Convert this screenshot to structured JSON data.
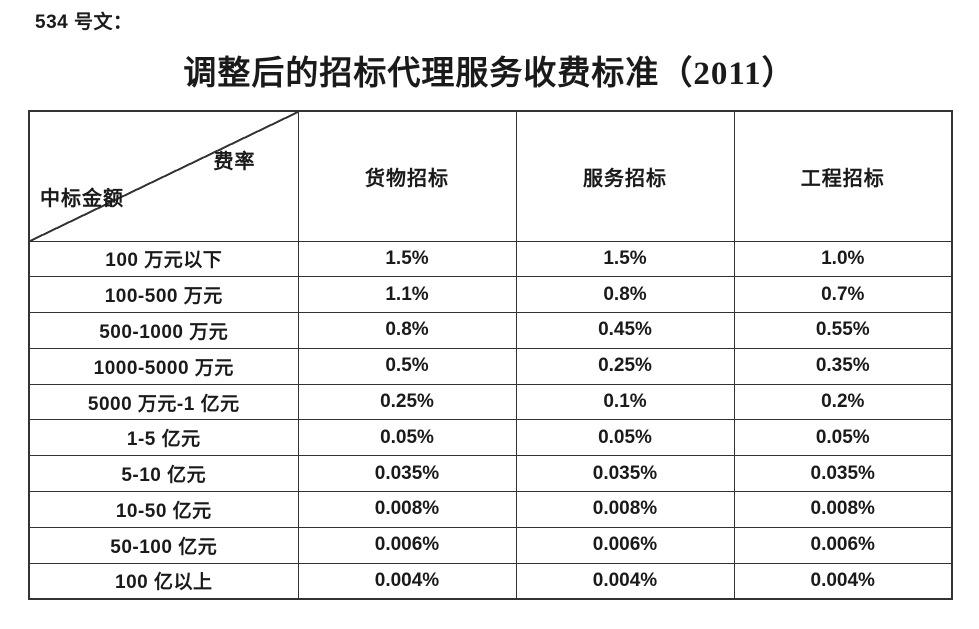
{
  "doc_number": "534 号文：",
  "title": "调整后的招标代理服务收费标准（2011）",
  "table": {
    "corner": {
      "rate_label": "费率",
      "amount_label": "中标金额"
    },
    "columns": [
      "货物招标",
      "服务招标",
      "工程招标"
    ],
    "rows": [
      {
        "label": "100 万元以下",
        "values": [
          "1.5%",
          "1.5%",
          "1.0%"
        ]
      },
      {
        "label": "100-500 万元",
        "values": [
          "1.1%",
          "0.8%",
          "0.7%"
        ]
      },
      {
        "label": "500-1000 万元",
        "values": [
          "0.8%",
          "0.45%",
          "0.55%"
        ]
      },
      {
        "label": "1000-5000 万元",
        "values": [
          "0.5%",
          "0.25%",
          "0.35%"
        ]
      },
      {
        "label": "5000 万元-1 亿元",
        "values": [
          "0.25%",
          "0.1%",
          "0.2%"
        ]
      },
      {
        "label": "1-5 亿元",
        "values": [
          "0.05%",
          "0.05%",
          "0.05%"
        ]
      },
      {
        "label": "5-10 亿元",
        "values": [
          "0.035%",
          "0.035%",
          "0.035%"
        ]
      },
      {
        "label": "10-50 亿元",
        "values": [
          "0.008%",
          "0.008%",
          "0.008%"
        ]
      },
      {
        "label": "50-100 亿元",
        "values": [
          "0.006%",
          "0.006%",
          "0.006%"
        ]
      },
      {
        "label": "100 亿以上",
        "values": [
          "0.004%",
          "0.004%",
          "0.004%"
        ]
      }
    ]
  },
  "colors": {
    "text": "#1a1a1a",
    "border": "#333333",
    "background": "#ffffff"
  }
}
